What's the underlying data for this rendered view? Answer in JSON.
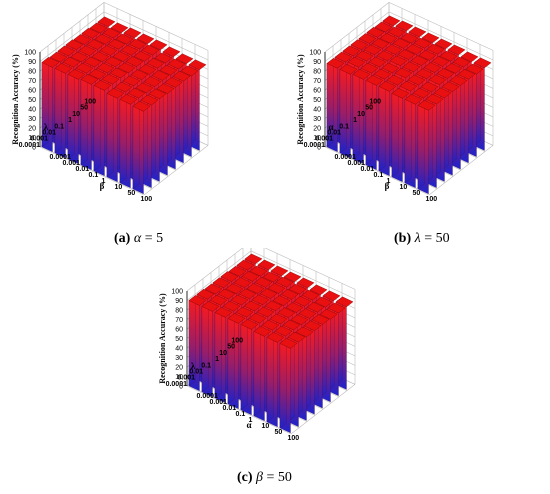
{
  "chart_data": [
    {
      "type": "bar3d",
      "caption": {
        "letter": "(a)",
        "symbol": "α",
        "eq": "= 5"
      },
      "zlabel": "Recognition Accuracy (%)",
      "zticks": [
        "0",
        "10",
        "20",
        "30",
        "40",
        "50",
        "60",
        "70",
        "80",
        "90",
        "100"
      ],
      "zlim": [
        0,
        100
      ],
      "xlabel": "β",
      "ylabel": "λ",
      "categories_x": [
        "0.0001",
        "0.001",
        "0.01",
        "0.1",
        "1",
        "10",
        "50",
        "100"
      ],
      "categories_y": [
        "0.0001",
        "0.001",
        "0.01",
        "0.1",
        "1",
        "10",
        "50",
        "100"
      ],
      "values": [
        [
          89,
          89,
          89,
          90,
          90,
          88,
          88,
          87
        ],
        [
          88,
          89,
          89,
          89,
          90,
          88,
          88,
          87
        ],
        [
          88,
          88,
          89,
          89,
          90,
          88,
          87,
          87
        ],
        [
          88,
          88,
          88,
          89,
          89,
          88,
          87,
          86
        ],
        [
          87,
          88,
          88,
          88,
          89,
          87,
          87,
          86
        ],
        [
          87,
          87,
          88,
          88,
          88,
          87,
          86,
          86
        ],
        [
          86,
          87,
          87,
          88,
          88,
          86,
          86,
          85
        ],
        [
          86,
          86,
          87,
          87,
          87,
          86,
          85,
          85
        ]
      ]
    },
    {
      "type": "bar3d",
      "caption": {
        "letter": "(b)",
        "symbol": "λ",
        "eq": "= 50"
      },
      "zlabel": "Recognition Accuracy (%)",
      "zticks": [
        "0",
        "10",
        "20",
        "30",
        "40",
        "50",
        "60",
        "70",
        "80",
        "90",
        "100"
      ],
      "zlim": [
        0,
        100
      ],
      "xlabel": "β",
      "ylabel": "α",
      "categories_x": [
        "0.0001",
        "0.001",
        "0.01",
        "0.1",
        "1",
        "10",
        "50",
        "100"
      ],
      "categories_y": [
        "0.0001",
        "0.001",
        "0.01",
        "0.1",
        "1",
        "10",
        "50",
        "100"
      ],
      "values": [
        [
          88,
          88,
          89,
          89,
          89,
          88,
          88,
          88
        ],
        [
          88,
          89,
          89,
          89,
          89,
          89,
          88,
          88
        ],
        [
          88,
          89,
          89,
          89,
          90,
          89,
          88,
          88
        ],
        [
          88,
          89,
          89,
          90,
          90,
          89,
          89,
          88
        ],
        [
          88,
          89,
          89,
          90,
          90,
          89,
          89,
          88
        ],
        [
          88,
          88,
          89,
          89,
          89,
          89,
          88,
          88
        ],
        [
          87,
          88,
          88,
          89,
          89,
          88,
          88,
          87
        ],
        [
          87,
          88,
          88,
          88,
          88,
          88,
          87,
          87
        ]
      ]
    },
    {
      "type": "bar3d",
      "caption": {
        "letter": "(c)",
        "symbol": "β",
        "eq": "= 50"
      },
      "zlabel": "Recognition Accuracy (%)",
      "zticks": [
        "0",
        "10",
        "20",
        "30",
        "40",
        "50",
        "60",
        "70",
        "80",
        "90",
        "100"
      ],
      "zlim": [
        0,
        100
      ],
      "xlabel": "α",
      "ylabel": "λ",
      "categories_x": [
        "0.0001",
        "0.001",
        "0.01",
        "0.1",
        "1",
        "10",
        "50",
        "100"
      ],
      "categories_y": [
        "0.0001",
        "0.001",
        "0.01",
        "0.1",
        "1",
        "10",
        "50",
        "100"
      ],
      "values": [
        [
          90,
          90,
          90,
          90,
          90,
          89,
          89,
          89
        ],
        [
          90,
          90,
          90,
          90,
          90,
          89,
          89,
          89
        ],
        [
          89,
          90,
          90,
          90,
          90,
          89,
          89,
          88
        ],
        [
          89,
          89,
          90,
          90,
          90,
          89,
          88,
          88
        ],
        [
          89,
          89,
          89,
          90,
          89,
          88,
          88,
          88
        ],
        [
          88,
          89,
          89,
          89,
          89,
          88,
          88,
          87
        ],
        [
          88,
          88,
          88,
          89,
          88,
          88,
          87,
          87
        ],
        [
          88,
          88,
          88,
          88,
          88,
          87,
          87,
          87
        ]
      ]
    }
  ],
  "colors": {
    "top": "#ff1a1a",
    "bottom": "#1c22cc",
    "grid": "#bdbdbd",
    "axis": "#000000"
  }
}
